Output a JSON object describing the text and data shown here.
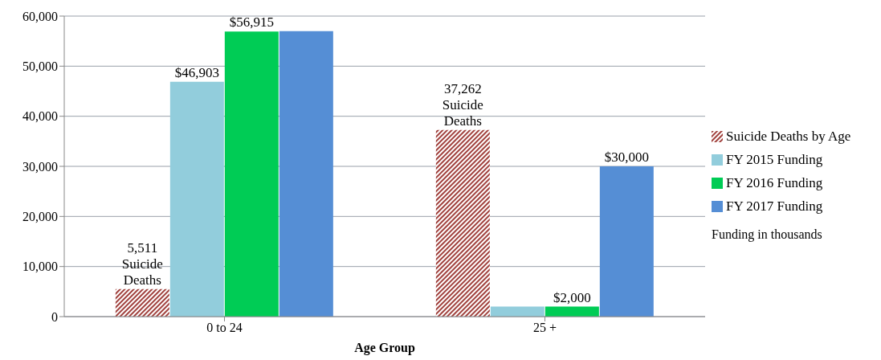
{
  "chart_data": {
    "type": "bar",
    "xlabel": "Age Group",
    "categories": [
      "0 to 24",
      "25 +"
    ],
    "series": [
      {
        "name": "Suicide Deaths by Age",
        "color": "#a0403c",
        "values": [
          5511,
          37262
        ],
        "value_labels": [
          "5,511\nSuicide\nDeaths",
          "37,262\nSuicide\nDeaths"
        ]
      },
      {
        "name": "FY 2015 Funding",
        "color": "#92cddc",
        "values": [
          46903,
          2000
        ],
        "value_labels": [
          "$46,903",
          null
        ]
      },
      {
        "name": "FY 2016 Funding",
        "color": "#00cc55",
        "values": [
          56915,
          2000
        ],
        "value_labels": [
          "$56,915",
          "$2,000"
        ]
      },
      {
        "name": "FY 2017 Funding",
        "color": "#558ed5",
        "values": [
          57000,
          30000
        ],
        "value_labels": [
          null,
          "$30,000"
        ]
      }
    ],
    "ylim": [
      0,
      60000
    ],
    "yticks": [
      0,
      {
        "value": 10000,
        "label": "10,000"
      },
      {
        "value": 20000,
        "label": "20,000"
      },
      {
        "value": 30000,
        "label": "30,000"
      },
      {
        "value": 40000,
        "label": "40,000"
      },
      {
        "value": 50000,
        "label": "50,000"
      },
      {
        "value": 60000,
        "label": "60,000"
      }
    ],
    "grid": "y",
    "legend": "right",
    "annotations": [
      "Funding in thousands"
    ]
  }
}
